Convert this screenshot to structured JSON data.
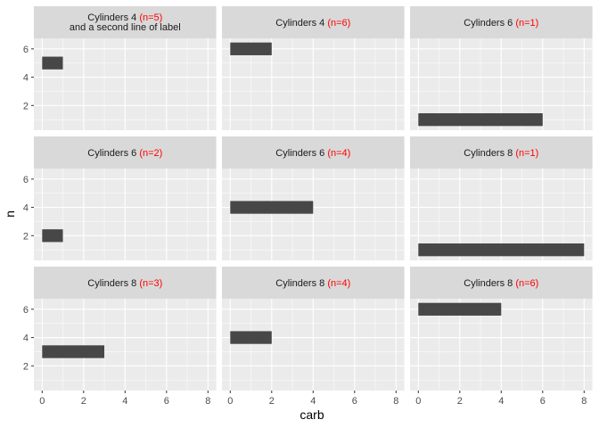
{
  "chart_data": {
    "type": "bar",
    "orientation": "horizontal",
    "xlabel": "carb",
    "ylabel": "n",
    "xlim": [
      -0.4,
      8.4
    ],
    "ylim": [
      0.255,
      6.745
    ],
    "x_ticks": [
      0,
      2,
      4,
      6,
      8
    ],
    "y_ticks": [
      2,
      4,
      6
    ],
    "grid": true,
    "bar_color": "#474747",
    "count_color": "#ff0000",
    "panels": [
      {
        "label": "Cylinders 4",
        "count": "(n=5)",
        "line2": "and a second line of label",
        "n": 5,
        "carb": 1
      },
      {
        "label": "Cylinders 4",
        "count": "(n=6)",
        "line2": "",
        "n": 6,
        "carb": 2
      },
      {
        "label": "Cylinders 6",
        "count": "(n=1)",
        "line2": "",
        "n": 1,
        "carb": 6
      },
      {
        "label": "Cylinders 6",
        "count": "(n=2)",
        "line2": "",
        "n": 2,
        "carb": 1
      },
      {
        "label": "Cylinders 6",
        "count": "(n=4)",
        "line2": "",
        "n": 4,
        "carb": 4
      },
      {
        "label": "Cylinders 8",
        "count": "(n=1)",
        "line2": "",
        "n": 1,
        "carb": 8
      },
      {
        "label": "Cylinders 8",
        "count": "(n=3)",
        "line2": "",
        "n": 3,
        "carb": 3
      },
      {
        "label": "Cylinders 8",
        "count": "(n=4)",
        "line2": "",
        "n": 4,
        "carb": 2
      },
      {
        "label": "Cylinders 8",
        "count": "(n=6)",
        "line2": "",
        "n": 6,
        "carb": 4
      }
    ]
  }
}
